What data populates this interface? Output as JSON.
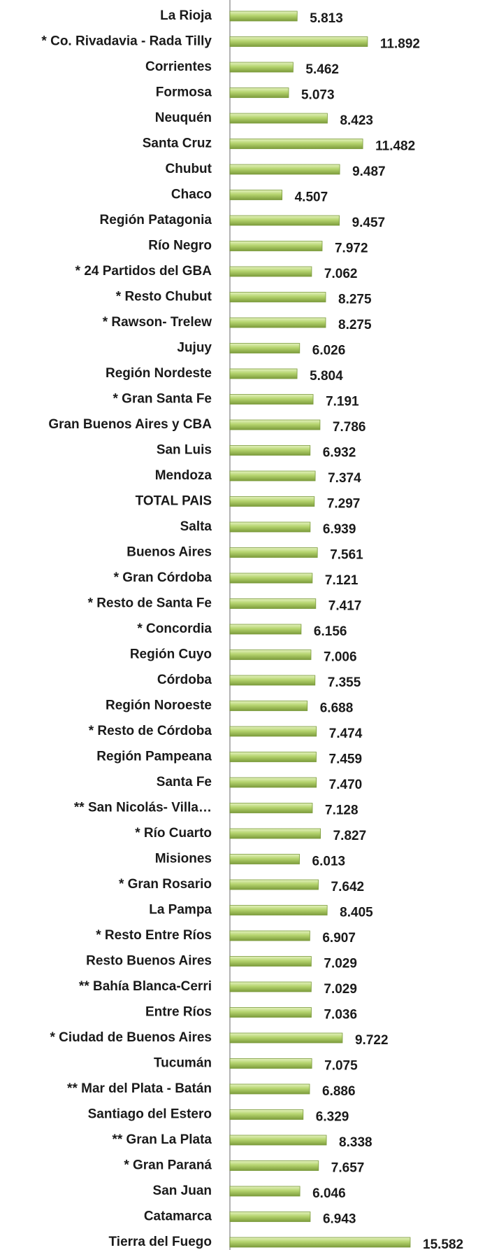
{
  "chart_data": {
    "type": "bar",
    "orientation": "horizontal",
    "color": "#a9cc5f",
    "categories": [
      "La Rioja",
      "* Co. Rivadavia - Rada Tilly",
      "Corrientes",
      "Formosa",
      "Neuquén",
      "Santa Cruz",
      "Chubut",
      "Chaco",
      "Región Patagonia",
      "Río Negro",
      "* 24 Partidos del GBA",
      "* Resto Chubut",
      "* Rawson- Trelew",
      "Jujuy",
      "Región Nordeste",
      "* Gran Santa Fe",
      "Gran Buenos Aires y CBA",
      "San Luis",
      "Mendoza",
      "TOTAL PAIS",
      "Salta",
      "Buenos Aires",
      "* Gran Córdoba",
      "* Resto de Santa Fe",
      "* Concordia",
      "Región Cuyo",
      "Córdoba",
      "Región Noroeste",
      "* Resto de Córdoba",
      "Región Pampeana",
      "Santa Fe",
      "** San Nicolás- Villa…",
      "* Río Cuarto",
      "Misiones",
      "* Gran Rosario",
      "La Pampa",
      "* Resto Entre Ríos",
      "Resto Buenos Aires",
      "** Bahía Blanca-Cerri",
      "Entre Ríos",
      "* Ciudad de Buenos Aires",
      "Tucumán",
      "** Mar del Plata - Batán",
      "Santiago del Estero",
      "** Gran La Plata",
      "* Gran Paraná",
      "San Juan",
      "Catamarca",
      "Tierra del Fuego"
    ],
    "values": [
      5.813,
      11.892,
      5.462,
      5.073,
      8.423,
      11.482,
      9.487,
      4.507,
      9.457,
      7.972,
      7.062,
      8.275,
      8.275,
      6.026,
      5.804,
      7.191,
      7.786,
      6.932,
      7.374,
      7.297,
      6.939,
      7.561,
      7.121,
      7.417,
      6.156,
      7.006,
      7.355,
      6.688,
      7.474,
      7.459,
      7.47,
      7.128,
      7.827,
      6.013,
      7.642,
      8.405,
      6.907,
      7.029,
      7.029,
      7.036,
      9.722,
      7.075,
      6.886,
      6.329,
      8.338,
      7.657,
      6.046,
      6.943,
      15.582
    ],
    "value_labels": [
      "5.813",
      "11.892",
      "5.462",
      "5.073",
      "8.423",
      "11.482",
      "9.487",
      "4.507",
      "9.457",
      "7.972",
      "7.062",
      "8.275",
      "8.275",
      "6.026",
      "5.804",
      "7.191",
      "7.786",
      "6.932",
      "7.374",
      "7.297",
      "6.939",
      "7.561",
      "7.121",
      "7.417",
      "6.156",
      "7.006",
      "7.355",
      "6.688",
      "7.474",
      "7.459",
      "7.470",
      "7.128",
      "7.827",
      "6.013",
      "7.642",
      "8.405",
      "6.907",
      "7.029",
      "7.029",
      "7.036",
      "9.722",
      "7.075",
      "6.886",
      "6.329",
      "8.338",
      "7.657",
      "6.046",
      "6.943",
      "15.582"
    ]
  }
}
